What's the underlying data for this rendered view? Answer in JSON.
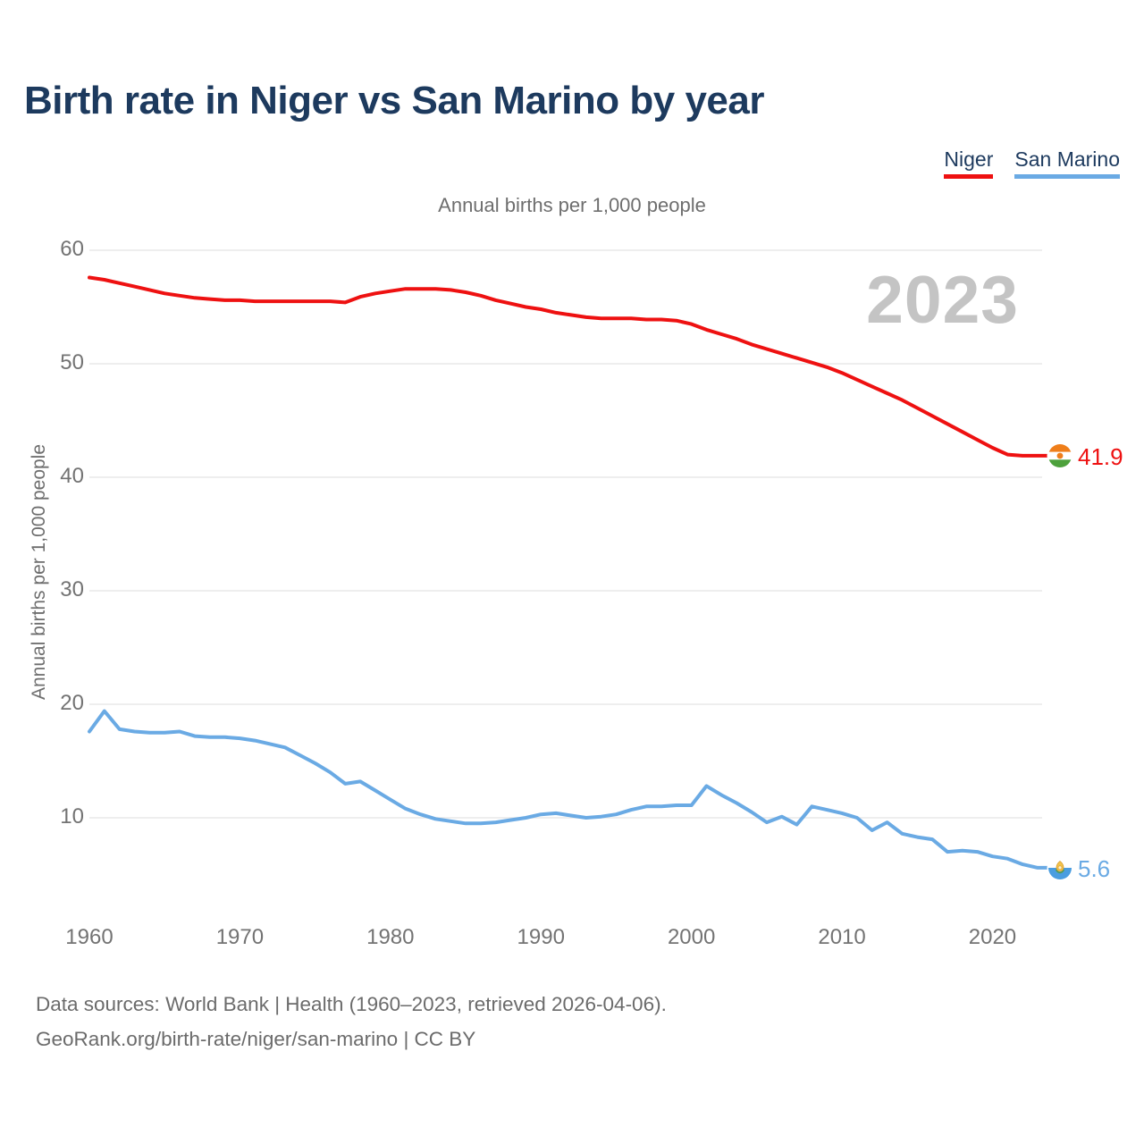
{
  "header": {
    "title": "Birth rate in Niger vs San Marino by year"
  },
  "footer": {
    "line1": "Data sources: World Bank | Health (1960–2023, retrieved 2026-04-06).",
    "line2": "GeoRank.org/birth-rate/niger/san-marino | CC BY"
  },
  "colors": {
    "niger": "#ee1111",
    "san_marino": "#6aaae4",
    "title_text": "#1d3a5e",
    "muted_text": "#6e6e6e",
    "tick_text": "#737373",
    "watermark": "#c4c4c4",
    "gridline": "#e8e8e8"
  },
  "icons": {
    "niger_flag": "niger-flag-icon",
    "san_marino_flag": "san-marino-flag-icon"
  },
  "chart_data": {
    "type": "line",
    "title": "Birth rate in Niger vs San Marino by year",
    "subtitle": "Annual births per 1,000 people",
    "ylabel": "Annual births per 1,000 people",
    "watermark": "2023",
    "grid": "horizontal",
    "legend_position": "top-right",
    "x_range": {
      "start": 1960,
      "end": 2023,
      "step": 1
    },
    "xticks": [
      1960,
      1970,
      1980,
      1990,
      2000,
      2010,
      2020
    ],
    "yticks": [
      10,
      20,
      30,
      40,
      50,
      60
    ],
    "ylim": [
      3,
      62
    ],
    "series": [
      {
        "name": "Niger",
        "color": "#ee1111",
        "end_label": "41.9",
        "values": [
          57.6,
          57.4,
          57.1,
          56.8,
          56.5,
          56.2,
          56.0,
          55.8,
          55.7,
          55.6,
          55.6,
          55.5,
          55.5,
          55.5,
          55.5,
          55.5,
          55.5,
          55.4,
          55.9,
          56.2,
          56.4,
          56.6,
          56.6,
          56.6,
          56.5,
          56.3,
          56.0,
          55.6,
          55.3,
          55.0,
          54.8,
          54.5,
          54.3,
          54.1,
          54.0,
          54.0,
          54.0,
          53.9,
          53.9,
          53.8,
          53.5,
          53.0,
          52.6,
          52.2,
          51.7,
          51.3,
          50.9,
          50.5,
          50.1,
          49.7,
          49.2,
          48.6,
          48.0,
          47.4,
          46.8,
          46.1,
          45.4,
          44.7,
          44.0,
          43.3,
          42.6,
          42.0,
          41.9,
          41.9
        ]
      },
      {
        "name": "San Marino",
        "color": "#6aaae4",
        "end_label": "5.6",
        "values": [
          17.6,
          19.4,
          17.8,
          17.6,
          17.5,
          17.5,
          17.6,
          17.2,
          17.1,
          17.1,
          17.0,
          16.8,
          16.5,
          16.2,
          15.5,
          14.8,
          14.0,
          13.0,
          13.2,
          12.4,
          11.6,
          10.8,
          10.3,
          9.9,
          9.7,
          9.5,
          9.5,
          9.6,
          9.8,
          10.0,
          10.3,
          10.4,
          10.2,
          10.0,
          10.1,
          10.3,
          10.7,
          11.0,
          11.0,
          11.1,
          11.1,
          12.8,
          12.0,
          11.3,
          10.5,
          9.6,
          10.1,
          9.4,
          11.0,
          10.7,
          10.4,
          10.0,
          8.9,
          9.6,
          8.6,
          8.3,
          8.1,
          7.0,
          7.1,
          7.0,
          6.6,
          6.4,
          5.9,
          5.6
        ]
      }
    ]
  }
}
